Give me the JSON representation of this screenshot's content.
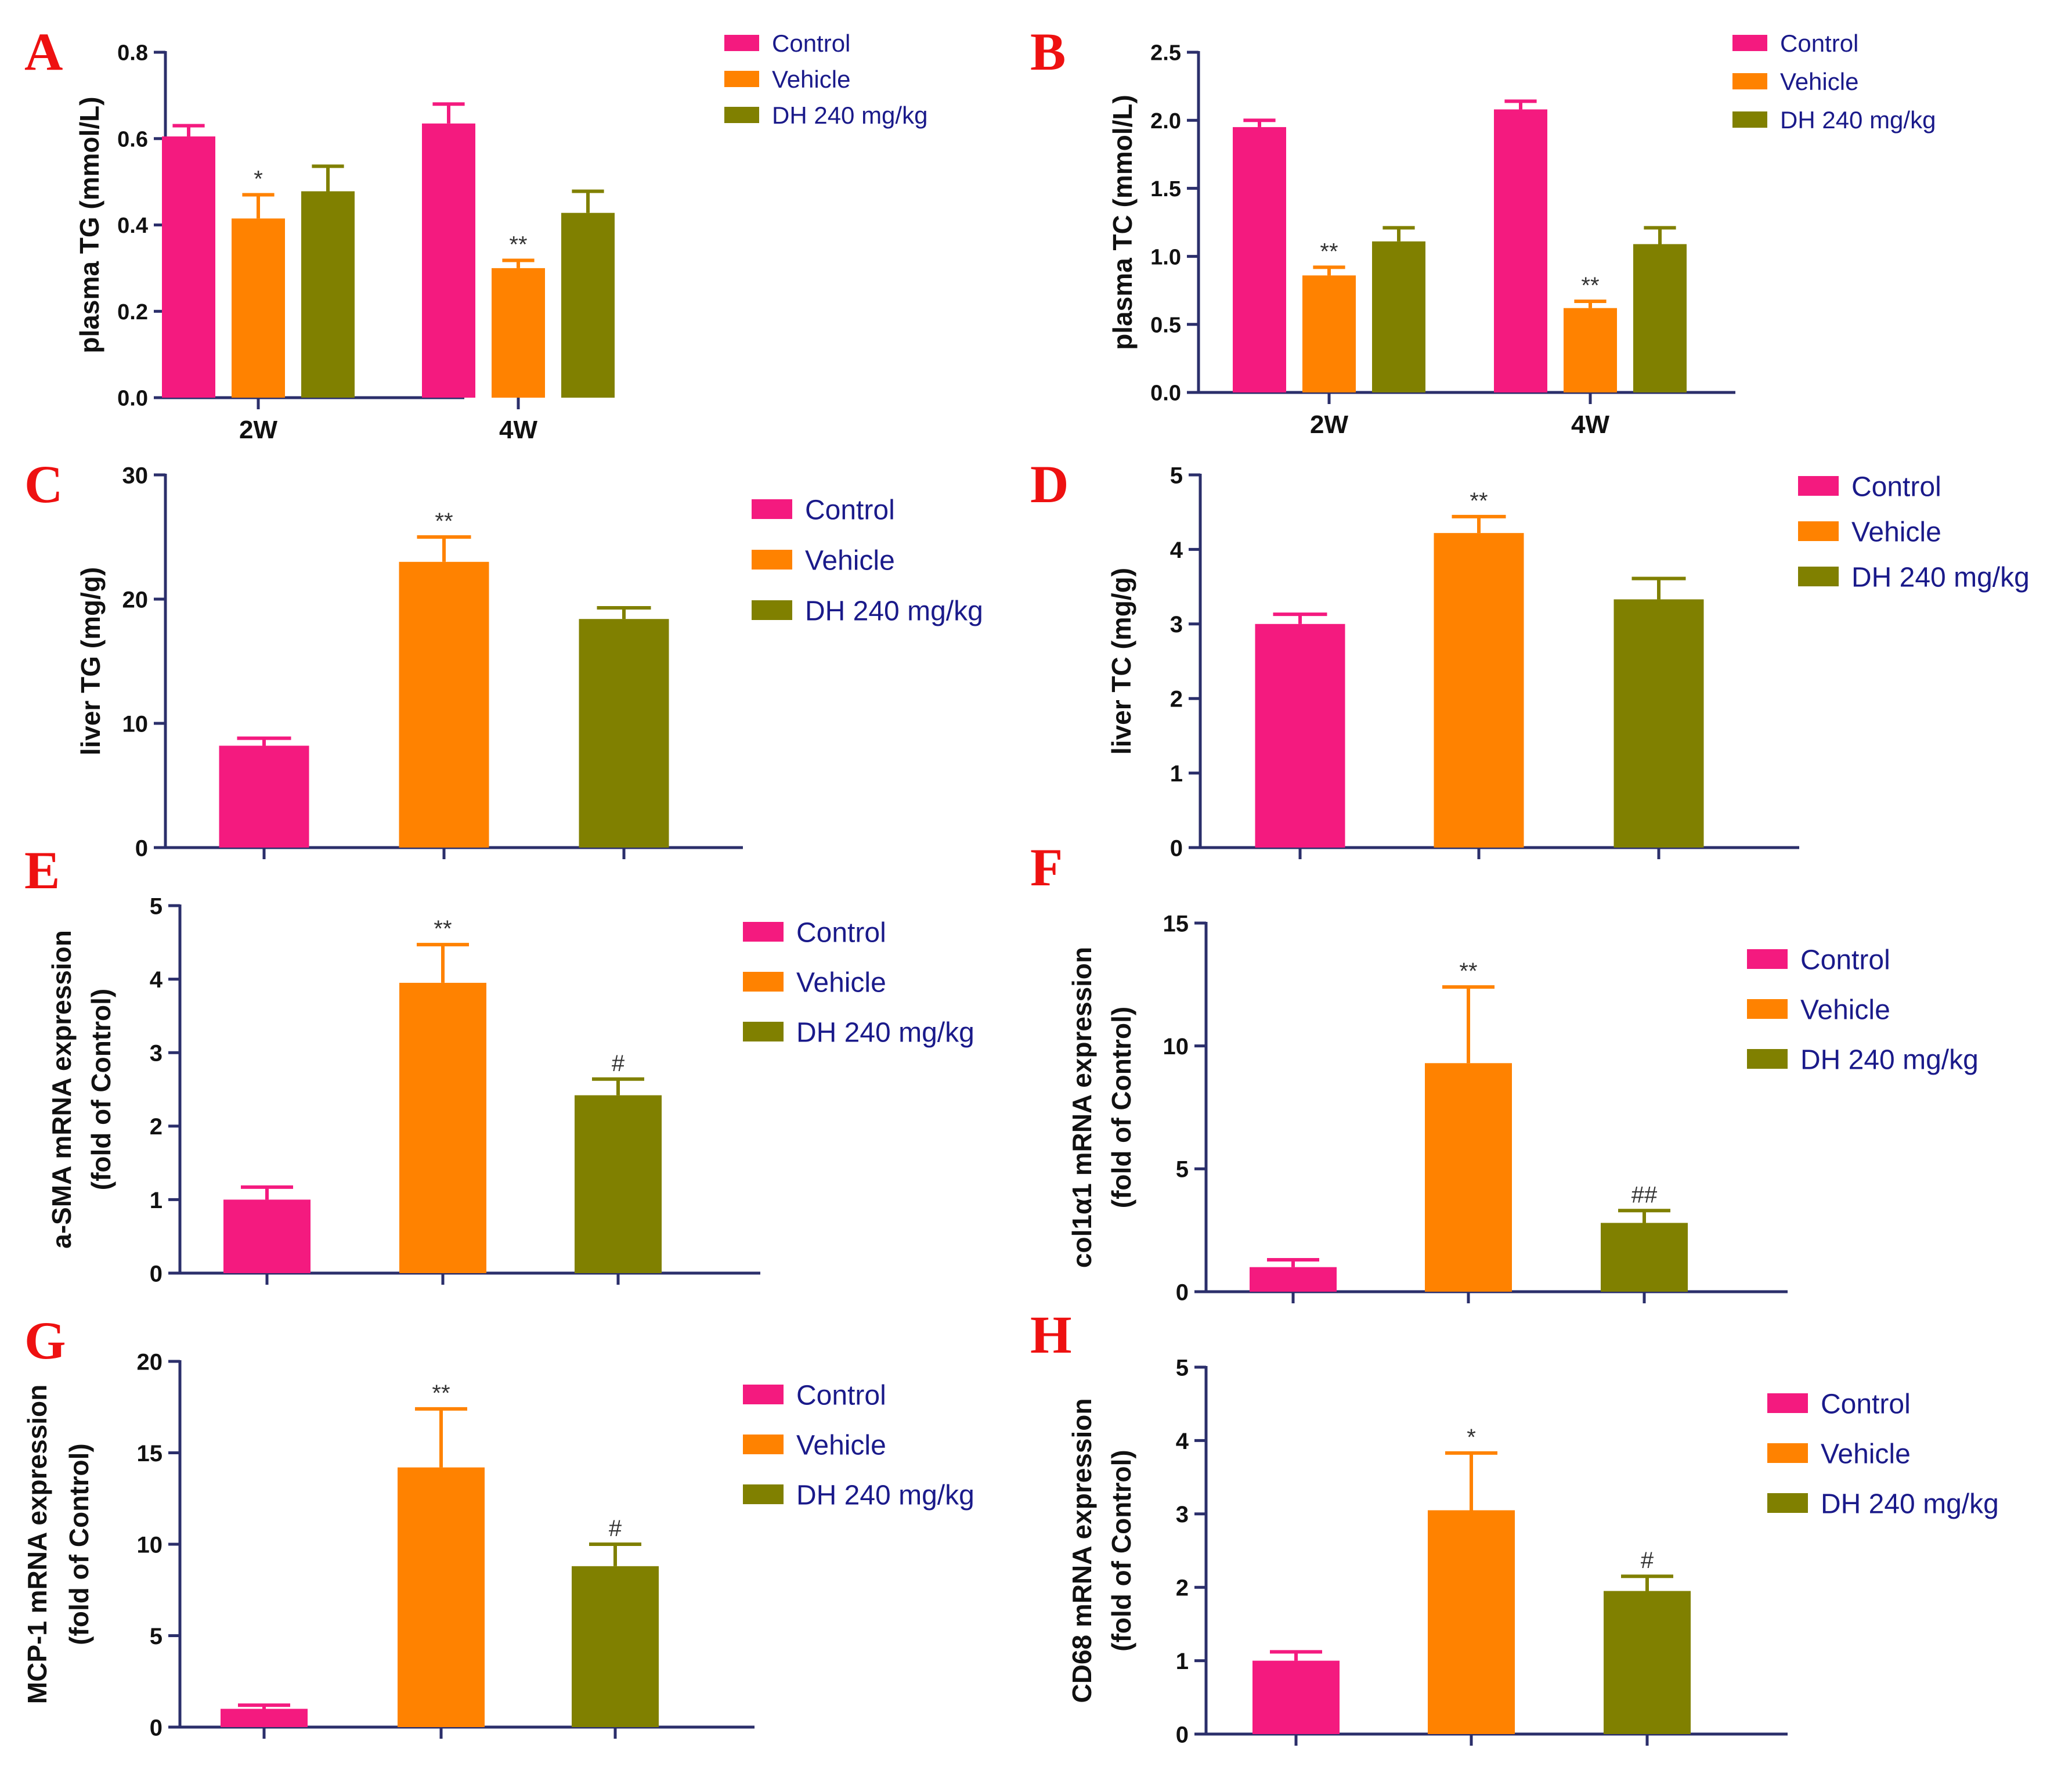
{
  "colors": {
    "control": "#f41a7f",
    "vehicle": "#ff8200",
    "dh": "#808000",
    "axis": "#2b2f6b",
    "letter": "#ee1111",
    "legend_text": "#1a1a8a",
    "error": "#222222"
  },
  "chart_data": [
    {
      "id": "A",
      "type": "bar",
      "letter": "A",
      "ylabel": "plasma TG (mmol/L)",
      "ylim": [
        0,
        0.8
      ],
      "yticks": [
        "0.0",
        "0.2",
        "0.4",
        "0.6",
        "0.8"
      ],
      "categories": [
        "2W",
        "4W"
      ],
      "legend": [
        "Control",
        "Vehicle",
        "DH 240 mg/kg"
      ],
      "series": [
        {
          "name": "Control",
          "values": [
            0.605,
            0.635
          ],
          "errors": [
            0.025,
            0.045
          ],
          "sig": [
            "",
            ""
          ]
        },
        {
          "name": "Vehicle",
          "values": [
            0.415,
            0.3
          ],
          "errors": [
            0.055,
            0.018
          ],
          "sig": [
            "*",
            "**"
          ]
        },
        {
          "name": "DH 240 mg/kg",
          "values": [
            0.478,
            0.428
          ],
          "errors": [
            0.058,
            0.05
          ],
          "sig": [
            "",
            ""
          ]
        }
      ]
    },
    {
      "id": "B",
      "type": "bar",
      "letter": "B",
      "ylabel": "plasma TC (mmol/L)",
      "ylim": [
        0,
        2.5
      ],
      "yticks": [
        "0.0",
        "0.5",
        "1.0",
        "1.5",
        "2.0",
        "2.5"
      ],
      "categories": [
        "2W",
        "4W"
      ],
      "legend": [
        "Control",
        "Vehicle",
        "DH 240 mg/kg"
      ],
      "series": [
        {
          "name": "Control",
          "values": [
            1.95,
            2.08
          ],
          "errors": [
            0.05,
            0.06
          ],
          "sig": [
            "",
            ""
          ]
        },
        {
          "name": "Vehicle",
          "values": [
            0.86,
            0.62
          ],
          "errors": [
            0.06,
            0.05
          ],
          "sig": [
            "**",
            "**"
          ]
        },
        {
          "name": "DH 240 mg/kg",
          "values": [
            1.11,
            1.09
          ],
          "errors": [
            0.1,
            0.12
          ],
          "sig": [
            "",
            ""
          ]
        }
      ]
    },
    {
      "id": "C",
      "type": "bar",
      "letter": "C",
      "ylabel": "liver TG (mg/g)",
      "ylim": [
        0,
        30
      ],
      "yticks": [
        "0",
        "10",
        "20",
        "30"
      ],
      "categories": [
        "Control",
        "Vehicle",
        "DH 240 mg/kg"
      ],
      "legend": [
        "Control",
        "Vehicle",
        "DH 240 mg/kg"
      ],
      "values": [
        8.2,
        23.0,
        18.4
      ],
      "errors": [
        0.6,
        2.0,
        0.9
      ],
      "sig": [
        "",
        "**",
        ""
      ]
    },
    {
      "id": "D",
      "type": "bar",
      "letter": "D",
      "ylabel": "liver TC (mg/g)",
      "ylim": [
        0,
        5
      ],
      "yticks": [
        "0",
        "1",
        "2",
        "3",
        "4",
        "5"
      ],
      "categories": [
        "Control",
        "Vehicle",
        "DH 240 mg/kg"
      ],
      "legend": [
        "Control",
        "Vehicle",
        "DH 240 mg/kg"
      ],
      "values": [
        3.0,
        4.22,
        3.33
      ],
      "errors": [
        0.13,
        0.22,
        0.28
      ],
      "sig": [
        "",
        "**",
        ""
      ]
    },
    {
      "id": "E",
      "type": "bar",
      "letter": "E",
      "ylabel": [
        "a-SMA mRNA expression",
        "(fold of Control)"
      ],
      "ylim": [
        0,
        5
      ],
      "yticks": [
        "0",
        "1",
        "2",
        "3",
        "4",
        "5"
      ],
      "categories": [
        "Control",
        "Vehicle",
        "DH 240 mg/kg"
      ],
      "legend": [
        "Control",
        "Vehicle",
        "DH 240 mg/kg"
      ],
      "values": [
        1.0,
        3.95,
        2.42
      ],
      "errors": [
        0.17,
        0.52,
        0.22
      ],
      "sig": [
        "",
        "**",
        "#"
      ]
    },
    {
      "id": "F",
      "type": "bar",
      "letter": "F",
      "ylabel": [
        "col1α1 mRNA expression",
        "(fold of Control)"
      ],
      "ylim": [
        0,
        15
      ],
      "yticks": [
        "0",
        "5",
        "10",
        "15"
      ],
      "categories": [
        "Control",
        "Vehicle",
        "DH 240 mg/kg"
      ],
      "legend": [
        "Control",
        "Vehicle",
        "DH 240 mg/kg"
      ],
      "values": [
        1.0,
        9.3,
        2.8
      ],
      "errors": [
        0.3,
        3.1,
        0.5
      ],
      "sig": [
        "",
        "**",
        "##"
      ]
    },
    {
      "id": "G",
      "type": "bar",
      "letter": "G",
      "ylabel": [
        "MCP-1 mRNA expression",
        "(fold of Control)"
      ],
      "ylim": [
        0,
        20
      ],
      "yticks": [
        "0",
        "5",
        "10",
        "15",
        "20"
      ],
      "categories": [
        "Control",
        "Vehicle",
        "DH 240 mg/kg"
      ],
      "legend": [
        "Control",
        "Vehicle",
        "DH 240 mg/kg"
      ],
      "values": [
        1.0,
        14.2,
        8.8
      ],
      "errors": [
        0.2,
        3.2,
        1.2
      ],
      "sig": [
        "",
        "**",
        "#"
      ]
    },
    {
      "id": "H",
      "type": "bar",
      "letter": "H",
      "ylabel": [
        "CD68 mRNA expression",
        "(fold of Control)"
      ],
      "ylim": [
        0,
        5
      ],
      "yticks": [
        "0",
        "1",
        "2",
        "3",
        "4",
        "5"
      ],
      "categories": [
        "Control",
        "Vehicle",
        "DH 240 mg/kg"
      ],
      "legend": [
        "Control",
        "Vehicle",
        "DH 240 mg/kg"
      ],
      "values": [
        1.0,
        3.05,
        1.95
      ],
      "errors": [
        0.12,
        0.78,
        0.2
      ],
      "sig": [
        "",
        "*",
        "#"
      ]
    }
  ]
}
